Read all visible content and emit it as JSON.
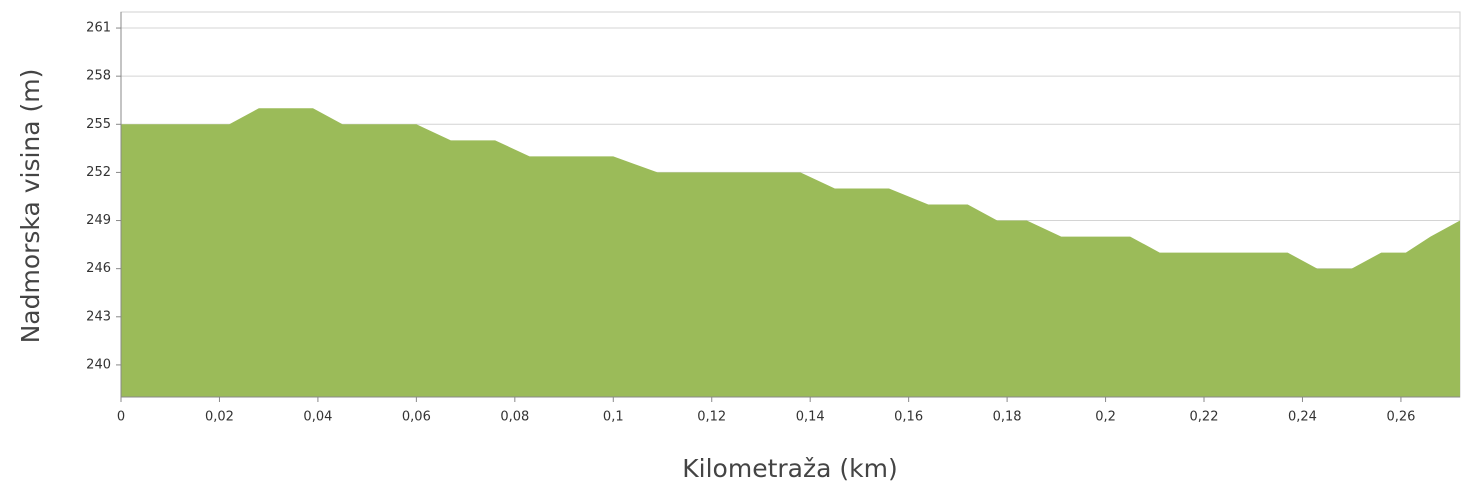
{
  "chart_data": {
    "type": "area",
    "xlabel": "Kilometraža (km)",
    "ylabel": "Nadmorska visina (m)",
    "x": [
      0,
      0.022,
      0.028,
      0.039,
      0.045,
      0.06,
      0.067,
      0.076,
      0.083,
      0.1,
      0.109,
      0.138,
      0.145,
      0.156,
      0.164,
      0.172,
      0.178,
      0.184,
      0.191,
      0.205,
      0.211,
      0.237,
      0.243,
      0.25,
      0.256,
      0.261,
      0.266,
      0.272
    ],
    "values": [
      255,
      255,
      256,
      256,
      255,
      255,
      254,
      254,
      253,
      253,
      252,
      252,
      251,
      251,
      250,
      250,
      249,
      249,
      248,
      248,
      247,
      247,
      246,
      246,
      247,
      247,
      248,
      249
    ],
    "color": "#9bbb59",
    "xlim": [
      0,
      0.272
    ],
    "xticks": [
      0,
      {
        "value": 0.02,
        "label": "0,02"
      },
      {
        "value": 0.04,
        "label": "0,04"
      },
      {
        "value": 0.06,
        "label": "0,06"
      },
      {
        "value": 0.08,
        "label": "0,08"
      },
      {
        "value": 0.1,
        "label": "0,1"
      },
      {
        "value": 0.12,
        "label": "0,12"
      },
      {
        "value": 0.14,
        "label": "0,14"
      },
      {
        "value": 0.16,
        "label": "0,16"
      },
      {
        "value": 0.18,
        "label": "0,18"
      },
      {
        "value": 0.2,
        "label": "0,2"
      },
      {
        "value": 0.22,
        "label": "0,22"
      },
      {
        "value": 0.24,
        "label": "0,24"
      },
      {
        "value": 0.26,
        "label": "0,26"
      }
    ],
    "ylim": [
      238,
      262
    ],
    "yticks": [
      240,
      243,
      246,
      249,
      252,
      255,
      258,
      261
    ],
    "grid": true
  }
}
